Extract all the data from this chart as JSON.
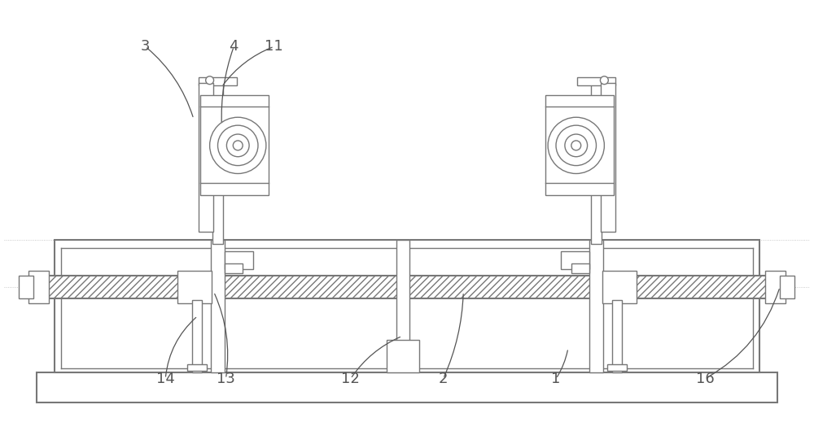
{
  "bg_color": "#ffffff",
  "line_color": "#777777",
  "dark_line": "#555555",
  "label_color": "#555555",
  "fig_width": 10.0,
  "fig_height": 5.19,
  "ann_fs": 13
}
